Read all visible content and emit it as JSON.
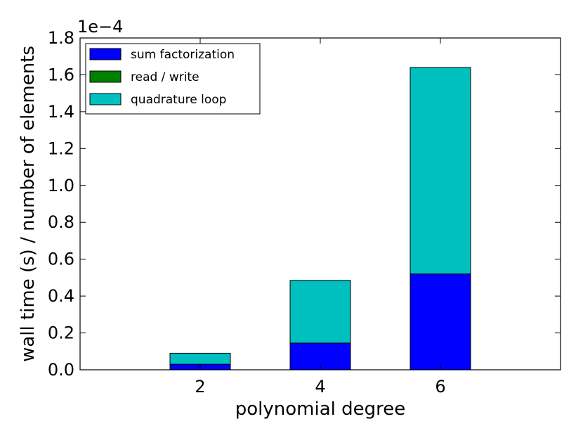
{
  "chart_data": {
    "type": "bar",
    "stacked": true,
    "categories": [
      "2",
      "4",
      "6"
    ],
    "x": [
      2,
      4,
      6
    ],
    "xlim": [
      0,
      8
    ],
    "xticks": [
      2,
      4,
      6
    ],
    "xlabel": "polynomial degree",
    "ylabel": "wall time (s) / number of elements",
    "y_offset_label": "1e−4",
    "ylim": [
      0,
      1.8
    ],
    "yticks": [
      "0.0",
      "0.2",
      "0.4",
      "0.6",
      "0.8",
      "1.0",
      "1.2",
      "1.4",
      "1.6",
      "1.8"
    ],
    "grid": false,
    "legend_position": "top-left",
    "series": [
      {
        "name": "sum factorization",
        "color": "#0000ff",
        "values": [
          0.03,
          0.145,
          0.52
        ]
      },
      {
        "name": "read / write",
        "color": "#008000",
        "values": [
          0.0,
          0.0,
          0.0
        ]
      },
      {
        "name": "quadrature loop",
        "color": "#00bfbf",
        "values": [
          0.06,
          0.34,
          1.12
        ]
      }
    ]
  }
}
